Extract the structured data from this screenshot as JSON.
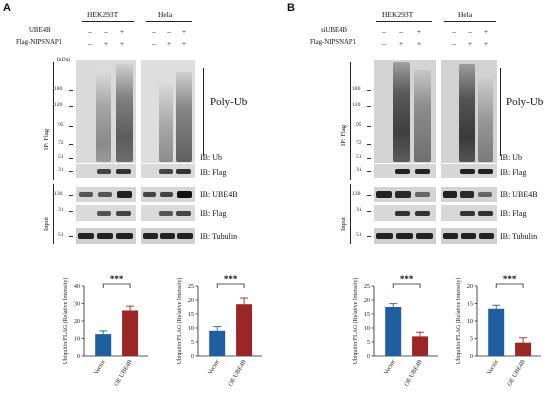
{
  "panels": [
    {
      "letter": "A",
      "cells": [
        "HEK293T",
        "Hela"
      ],
      "treat_label": "UBE4B",
      "flag_label": "Flag-NIPSNAP1",
      "treat_signs": [
        "–",
        "–",
        "+",
        "–",
        "–",
        "+"
      ],
      "flag_signs": [
        "–",
        "+",
        "+",
        "–",
        "+",
        "+"
      ]
    },
    {
      "letter": "B",
      "cells": [
        "HEK293T",
        "Hela"
      ],
      "treat_label": "siUBE4B",
      "flag_label": "Flag-NIPSNAP1",
      "treat_signs": [
        "–",
        "–",
        "+",
        "–",
        "–",
        "+"
      ],
      "flag_signs": [
        "–",
        "+",
        "+",
        "–",
        "+",
        "+"
      ]
    }
  ],
  "kda_label": "(kDa)",
  "mw_ub": [
    "180",
    "120",
    "95",
    "72",
    "51",
    "31"
  ],
  "mw_ube4b": "130",
  "mw_flag": "31",
  "mw_tubulin": "51",
  "ip_label": "IP: Flag",
  "input_label": "Input",
  "polyub_label": "Poly-Ub",
  "ib": {
    "ub": "IB: Ub",
    "flag": "IB: Flag",
    "ube4b": "IB: UBE4B",
    "tubulin": "IB: Tubulin"
  },
  "significance": "***",
  "colors": {
    "blue": "#1f5fa0",
    "red": "#9b2626"
  },
  "chart_data": [
    {
      "type": "bar",
      "ylabel": "Ubiquitin/FLAG (Relative Intensity)",
      "categories": [
        "Vector",
        "OE UBE4B"
      ],
      "values": [
        12.5,
        26
      ],
      "errors": [
        1.8,
        2.5
      ],
      "ylim": [
        0,
        40
      ],
      "yticks": [
        "0",
        "10",
        "20",
        "30",
        "40"
      ]
    },
    {
      "type": "bar",
      "ylabel": "Ubiquitin/FLAG (Relative Intensity)",
      "categories": [
        "Vector",
        "OE UBE4B"
      ],
      "values": [
        9,
        18.5
      ],
      "errors": [
        1.5,
        2.2
      ],
      "ylim": [
        0,
        25
      ],
      "yticks": [
        "0",
        "5",
        "10",
        "15",
        "20",
        "25"
      ]
    },
    {
      "type": "bar",
      "ylabel": "Ubiquitin/FLAG (Relative Intensity)",
      "categories": [
        "Vector",
        "OE UBE4B"
      ],
      "values": [
        17.5,
        7
      ],
      "errors": [
        1.2,
        1.5
      ],
      "ylim": [
        0,
        25
      ],
      "yticks": [
        "0",
        "5",
        "10",
        "15",
        "20",
        "25"
      ]
    },
    {
      "type": "bar",
      "ylabel": "Ubiquitin/FLAG (Relative Intensity)",
      "categories": [
        "Vector",
        "OE UBE4B"
      ],
      "values": [
        13.5,
        3.8
      ],
      "errors": [
        1.0,
        1.4
      ],
      "ylim": [
        0,
        20
      ],
      "yticks": [
        "0",
        "5",
        "10",
        "15",
        "20"
      ]
    }
  ]
}
